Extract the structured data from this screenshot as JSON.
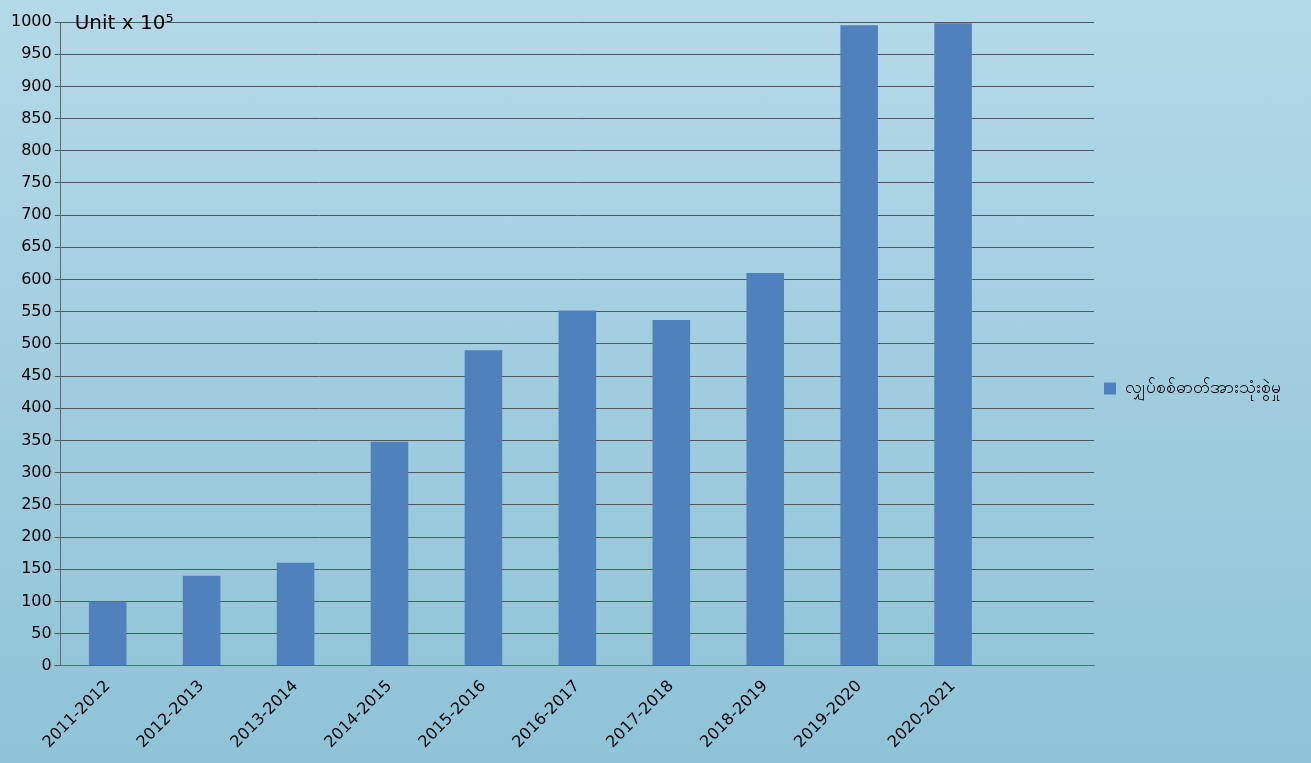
{
  "chart_data": {
    "type": "bar",
    "annotation": "Unit x 10⁵",
    "categories": [
      "2011-2012",
      "2012-2013",
      "2013-2014",
      "2014-2015",
      "2015-2016",
      "2016-2017",
      "2017-2018",
      "2018-2019",
      "2019-2020",
      "2020-2021",
      null
    ],
    "series": [
      {
        "name": "လျှပ်စစ်ဓာတ်အားသုံးစွဲမှု",
        "color": "#4f81bd",
        "values": [
          100,
          140,
          160,
          348,
          490,
          552,
          537,
          610,
          995,
          998,
          null
        ]
      }
    ],
    "ylim": [
      0,
      1000
    ],
    "yticks": [
      0,
      50,
      100,
      150,
      200,
      250,
      300,
      350,
      400,
      450,
      500,
      550,
      600,
      650,
      700,
      750,
      800,
      850,
      900,
      950,
      1000
    ],
    "grid": true,
    "legend": "right"
  }
}
